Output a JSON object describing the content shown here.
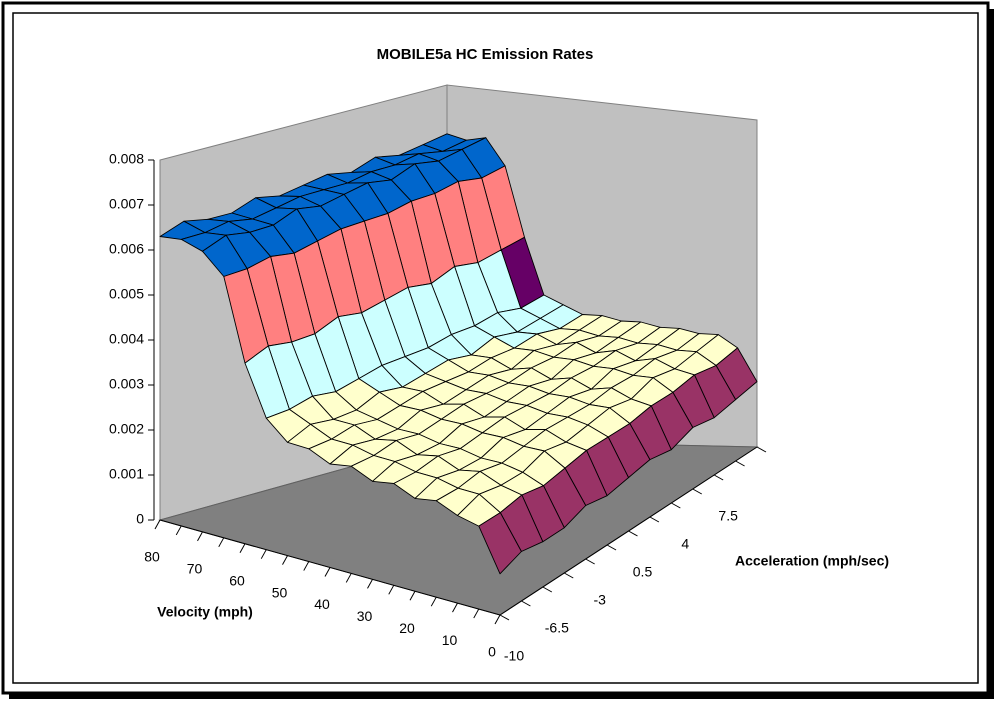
{
  "chart_data": {
    "type": "surface",
    "title": "MOBILE5a HC Emission Rates",
    "x_label": "Velocity (mph)",
    "y_label": "Acceleration (mph/sec)",
    "velocity": [
      0,
      null,
      10,
      null,
      20,
      null,
      30,
      null,
      40,
      null,
      50,
      null,
      60,
      null,
      70,
      null,
      80
    ],
    "acceleration": [
      -10,
      null,
      -6.5,
      null,
      -3,
      null,
      0.5,
      null,
      4,
      null,
      7.5,
      null,
      null
    ],
    "z": [
      [
        0.001,
        0.0012,
        0.0011,
        0.0011,
        0.0013,
        0.0012,
        0.0013,
        0.0014,
        0.0013,
        0.0015,
        0.0014,
        0.0015,
        0.0016
      ],
      [
        0.002,
        0.002,
        0.0021,
        0.002,
        0.0021,
        0.0022,
        0.0022,
        0.0022,
        0.0023,
        0.0023,
        0.0024,
        0.0023,
        0.0024
      ],
      [
        0.0021,
        0.0023,
        0.0022,
        0.0022,
        0.0024,
        0.0023,
        0.0024,
        0.0025,
        0.0024,
        0.0026,
        0.0025,
        0.0026,
        0.0027
      ],
      [
        0.0023,
        0.0023,
        0.0024,
        0.0023,
        0.0024,
        0.0025,
        0.0025,
        0.0025,
        0.0026,
        0.0026,
        0.0027,
        0.0026,
        0.0027
      ],
      [
        0.0022,
        0.0024,
        0.0023,
        0.0023,
        0.0025,
        0.0024,
        0.0025,
        0.0026,
        0.0025,
        0.0027,
        0.0026,
        0.0027,
        0.0028
      ],
      [
        0.0024,
        0.0024,
        0.0025,
        0.0024,
        0.0025,
        0.0026,
        0.0026,
        0.0026,
        0.0027,
        0.0027,
        0.0028,
        0.0027,
        0.0028
      ],
      [
        0.0023,
        0.0025,
        0.0024,
        0.0024,
        0.0026,
        0.0025,
        0.0026,
        0.0027,
        0.0026,
        0.0028,
        0.0027,
        0.0028,
        0.0029
      ],
      [
        0.0025,
        0.0025,
        0.0026,
        0.0025,
        0.0026,
        0.0027,
        0.0027,
        0.0027,
        0.0028,
        0.0028,
        0.0029,
        0.0028,
        0.0029
      ],
      [
        0.0024,
        0.0026,
        0.0025,
        0.0025,
        0.0027,
        0.0026,
        0.0027,
        0.0028,
        0.0027,
        0.0029,
        0.0028,
        0.0029,
        0.003
      ],
      [
        0.0026,
        0.0026,
        0.0027,
        0.0026,
        0.0027,
        0.0028,
        0.0028,
        0.0028,
        0.0029,
        0.0029,
        0.003,
        0.0029,
        0.003
      ],
      [
        0.0026,
        0.0028,
        0.0027,
        0.0027,
        0.0029,
        0.0028,
        0.0029,
        0.003,
        0.0029,
        0.0031,
        0.003,
        0.0031,
        0.0032
      ],
      [
        0.003,
        0.003,
        0.0031,
        0.003,
        0.0031,
        0.0032,
        0.0032,
        0.0032,
        0.0033,
        0.0033,
        0.0034,
        0.0033,
        0.0034
      ],
      [
        0.0041,
        0.0043,
        0.0042,
        0.0042,
        0.0044,
        0.0043,
        0.0044,
        0.0045,
        0.0044,
        0.0046,
        0.0045,
        0.0046,
        0.0047
      ],
      [
        0.0059,
        0.0059,
        0.006,
        0.0059,
        0.006,
        0.0061,
        0.0061,
        0.0061,
        0.0062,
        0.0062,
        0.0063,
        0.0062,
        0.0063
      ],
      [
        0.0063,
        0.0065,
        0.0064,
        0.0064,
        0.0066,
        0.0065,
        0.0066,
        0.0067,
        0.0066,
        0.0068,
        0.0067,
        0.0068,
        0.0069
      ],
      [
        0.0064,
        0.0064,
        0.0065,
        0.0064,
        0.0065,
        0.0066,
        0.0066,
        0.0066,
        0.0067,
        0.0067,
        0.0068,
        0.0067,
        0.0068
      ],
      [
        0.0063,
        0.0065,
        0.0064,
        0.0064,
        0.0066,
        0.0065,
        0.0066,
        0.0067,
        0.0066,
        0.0068,
        0.0067,
        0.0068,
        0.0069
      ]
    ],
    "zlim": [
      0,
      0.008
    ],
    "zticks": [
      0,
      0.001,
      0.002,
      0.003,
      0.004,
      0.005,
      0.006,
      0.007,
      0.008
    ],
    "band_colors": [
      "#9999ff",
      "#993366",
      "#ffffcc",
      "#ccffff",
      "#660066",
      "#ff8080",
      "#0066cc",
      "#0066cc"
    ],
    "grid": false
  }
}
